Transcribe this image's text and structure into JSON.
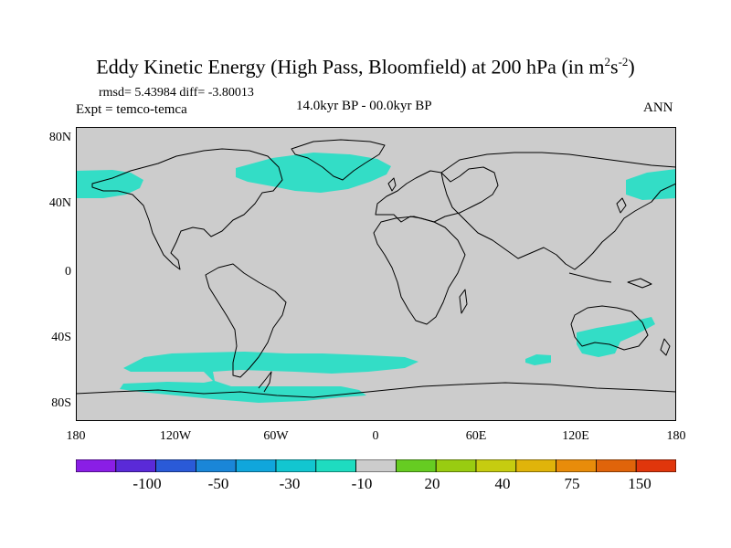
{
  "title": {
    "main": "Eddy Kinetic Energy (High Pass, Bloomfield) at 200 hPa (in m",
    "sup1": "2",
    "mid": "s",
    "sup2": "-2",
    "end": ")"
  },
  "stats": "rmsd= 5.43984 diff= -3.80013",
  "expt": "Expt = temco-temca",
  "period": "14.0kyr BP - 00.0kyr BP",
  "season": "ANN",
  "lat_labels": [
    "80N",
    "40N",
    "0",
    "40S",
    "80S"
  ],
  "lon_labels": [
    "180",
    "120W",
    "60W",
    "0",
    "60E",
    "120E",
    "180"
  ],
  "colorbar": {
    "colors": [
      "#8a1ee6",
      "#5a2ad8",
      "#2a5ad8",
      "#1a86d8",
      "#10a6dc",
      "#12c6d0",
      "#1edcc0",
      "#cccccc",
      "#66cc22",
      "#99cc11",
      "#c6cc10",
      "#e0b40a",
      "#e88c0a",
      "#e0640a",
      "#e0360c"
    ],
    "labels": [
      "-100",
      "-50",
      "-30",
      "-10",
      "20",
      "40",
      "75",
      "150"
    ]
  },
  "colors": {
    "land_field": "#cccccc",
    "anomaly_fill": "#33ddc6"
  }
}
